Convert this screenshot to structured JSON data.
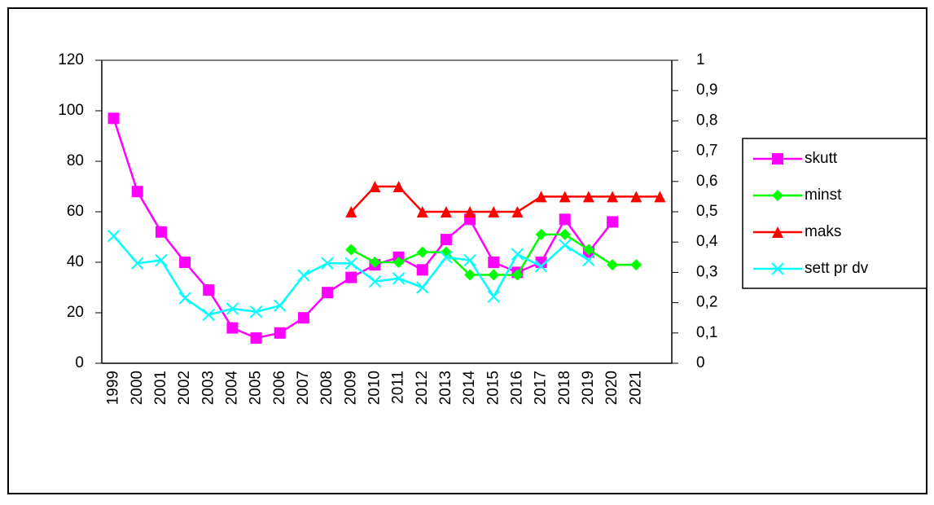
{
  "chart_data": {
    "type": "line",
    "categories": [
      "1999",
      "2000",
      "2001",
      "2002",
      "2003",
      "2004",
      "2005",
      "2006",
      "2007",
      "2008",
      "2009",
      "2010",
      "2011",
      "2012",
      "2013",
      "2014",
      "2015",
      "2016",
      "2017",
      "2018",
      "2019",
      "2020",
      "2021",
      null
    ],
    "ylim": [
      0,
      120
    ],
    "yticks": [
      0,
      20,
      40,
      60,
      80,
      100,
      120
    ],
    "y2lim": [
      0,
      1
    ],
    "y2ticks": [
      0,
      {
        "value": 0.1,
        "label": "0,1"
      },
      {
        "value": 0.2,
        "label": "0,2"
      },
      {
        "value": 0.3,
        "label": "0,3"
      },
      {
        "value": 0.4,
        "label": "0,4"
      },
      {
        "value": 0.5,
        "label": "0,5"
      },
      {
        "value": 0.6,
        "label": "0,6"
      },
      {
        "value": 0.7,
        "label": "0,7"
      },
      {
        "value": 0.8,
        "label": "0,8"
      },
      {
        "value": 0.9,
        "label": "0,9"
      },
      1
    ],
    "legend": "right",
    "series": [
      {
        "name": "skutt",
        "color": "#ff00ff",
        "marker": "square",
        "values": [
          97,
          68,
          52,
          40,
          29,
          14,
          10,
          12,
          18,
          28,
          34,
          39,
          42,
          37,
          49,
          57,
          40,
          36,
          40,
          57,
          44,
          56,
          null,
          null
        ]
      },
      {
        "name": "minst",
        "color": "#00ff00",
        "marker": "diamond",
        "values": [
          null,
          null,
          null,
          null,
          null,
          null,
          null,
          null,
          null,
          null,
          45,
          40,
          40,
          44,
          44,
          35,
          35,
          35,
          51,
          51,
          45,
          39,
          39,
          null
        ]
      },
      {
        "name": "maks",
        "color": "#ff0000",
        "marker": "triangle",
        "values": [
          null,
          null,
          null,
          null,
          null,
          null,
          null,
          null,
          null,
          null,
          60,
          70,
          70,
          60,
          60,
          60,
          60,
          60,
          66,
          66,
          66,
          66,
          66,
          66
        ]
      },
      {
        "name": "sett pr dv",
        "color": "#00ffff",
        "marker": "x",
        "axis": "y2",
        "values": [
          0.42,
          0.33,
          0.34,
          0.215,
          0.16,
          0.18,
          0.17,
          0.19,
          0.29,
          0.33,
          0.33,
          0.27,
          0.28,
          0.25,
          0.35,
          0.34,
          0.22,
          0.36,
          0.32,
          0.39,
          0.34,
          null,
          null,
          null
        ]
      }
    ]
  }
}
